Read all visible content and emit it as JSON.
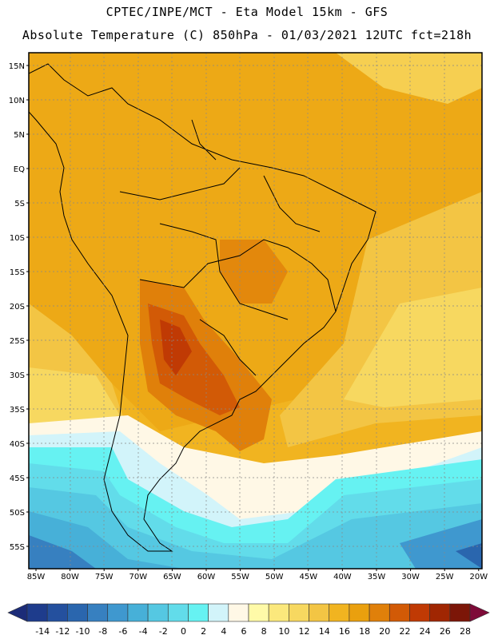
{
  "header": {
    "line1": "CPTEC/INPE/MCT -  Eta Model 15km - GFS",
    "line2": "Absolute Temperature (C) 850hPa - 01/03/2021 12UTC fct=218h"
  },
  "map": {
    "lat_labels": [
      "15N",
      "10N",
      "5N",
      "EQ",
      "5S",
      "10S",
      "15S",
      "20S",
      "25S",
      "30S",
      "35S",
      "40S",
      "45S",
      "50S",
      "55S"
    ],
    "lon_labels": [
      "85W",
      "80W",
      "75W",
      "70W",
      "65W",
      "60W",
      "55W",
      "50W",
      "45W",
      "40W",
      "35W",
      "30W",
      "25W",
      "20W"
    ]
  },
  "colorbar": {
    "labels": [
      "-14",
      "-12",
      "-10",
      "-8",
      "-6",
      "-4",
      "-2",
      "0",
      "2",
      "4",
      "6",
      "8",
      "10",
      "12",
      "14",
      "16",
      "18",
      "20",
      "22",
      "24",
      "26",
      "28"
    ],
    "colors": [
      "#1e3c8c",
      "#24509e",
      "#2a66ae",
      "#3780c0",
      "#3f98cf",
      "#47b0d8",
      "#55c8e2",
      "#62dcea",
      "#66f2f2",
      "#d2f4fa",
      "#fff8e6",
      "#fffaa8",
      "#fbe87c",
      "#f7d860",
      "#f3c544",
      "#f1b420",
      "#eaa00e",
      "#e0800a",
      "#d25a06",
      "#c03a04",
      "#a02602",
      "#7c1608"
    ],
    "end_colors": [
      "#1c2c78",
      "#7e0a38"
    ]
  }
}
